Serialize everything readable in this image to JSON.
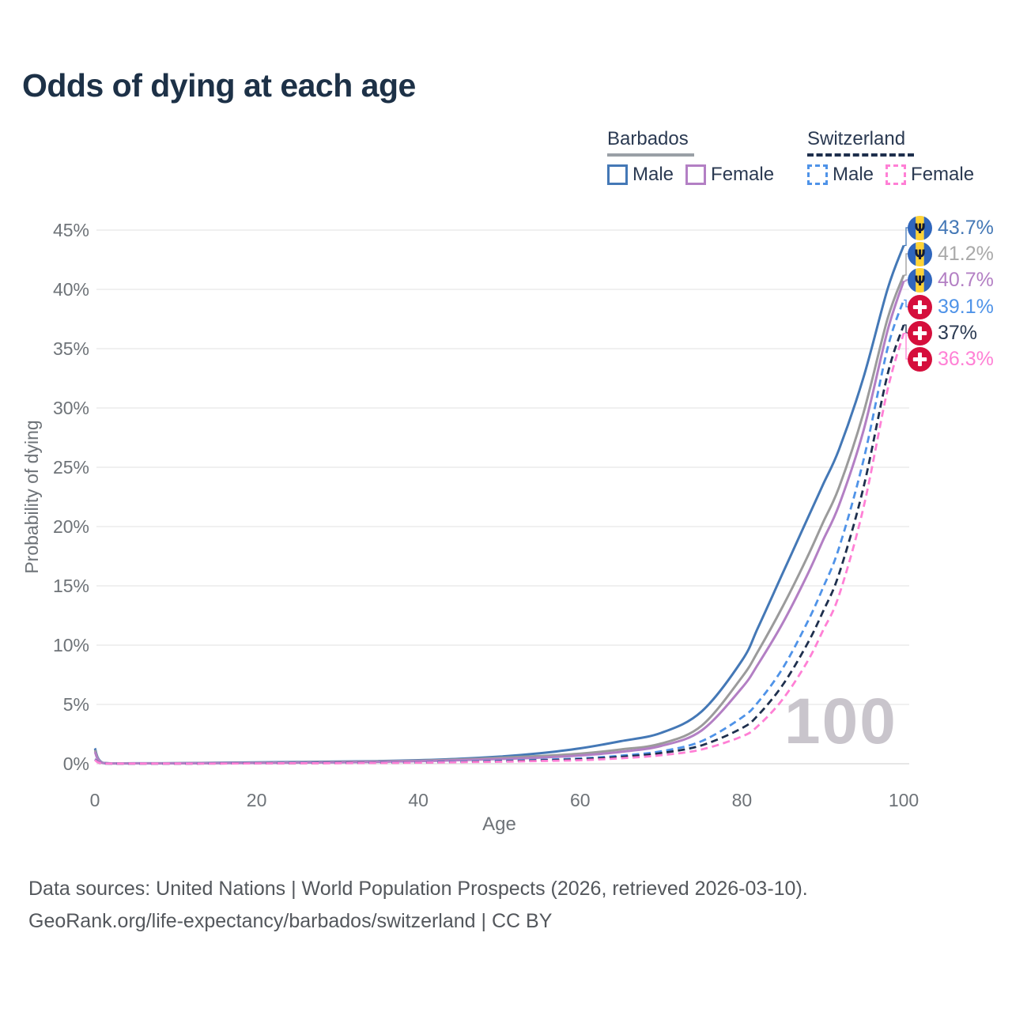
{
  "title": "Odds of dying at each age",
  "watermark": "100",
  "legend": {
    "groups": [
      {
        "label": "Barbados",
        "line_style": "solid",
        "line_color": "#9aa0a6",
        "items": [
          {
            "label": "Male",
            "color": "#4478b6"
          },
          {
            "label": "Female",
            "color": "#b37fc4"
          }
        ]
      },
      {
        "label": "Switzerland",
        "line_style": "dashed",
        "line_color": "#1e2f4d",
        "items": [
          {
            "label": "Male",
            "color": "#4f93e8"
          },
          {
            "label": "Female",
            "color": "#ff80d5"
          }
        ]
      }
    ]
  },
  "chart_data": {
    "type": "line",
    "title": "Odds of dying at each age",
    "xlabel": "Age",
    "ylabel": "Probability of dying",
    "xlim": [
      0,
      100
    ],
    "ylim": [
      0,
      45
    ],
    "x_ticks": [
      0,
      20,
      40,
      60,
      80,
      100
    ],
    "y_ticks_percent": [
      0,
      5,
      10,
      15,
      20,
      25,
      30,
      35,
      40,
      45
    ],
    "grid": "horizontal",
    "legend_position": "top-right",
    "ages": [
      0,
      1,
      5,
      10,
      15,
      20,
      25,
      30,
      35,
      40,
      45,
      50,
      55,
      60,
      65,
      70,
      75,
      80,
      82,
      85,
      88,
      90,
      92,
      95,
      98,
      100
    ],
    "series": [
      {
        "name": "Barbados Male",
        "country": "Barbados",
        "sex": "Male",
        "style": "solid",
        "color": "#4478b6",
        "flag": "barbados",
        "end_value_label": "43.7%",
        "label_color": "#4478b6",
        "values_percent": [
          1.3,
          0.08,
          0.04,
          0.05,
          0.08,
          0.12,
          0.15,
          0.18,
          0.22,
          0.3,
          0.42,
          0.6,
          0.88,
          1.3,
          1.9,
          2.6,
          4.4,
          8.7,
          11.5,
          16.0,
          20.5,
          23.5,
          26.5,
          32.5,
          40.0,
          43.7
        ]
      },
      {
        "name": "Barbados Both sexes",
        "country": "Barbados",
        "sex": "Both",
        "style": "solid",
        "color": "#9b9b9b",
        "flag": "barbados",
        "end_value_label": "41.2%",
        "label_color": "#a9a9a9",
        "values_percent": [
          1.15,
          0.07,
          0.03,
          0.04,
          0.06,
          0.09,
          0.12,
          0.15,
          0.19,
          0.26,
          0.36,
          0.5,
          0.65,
          0.85,
          1.2,
          1.7,
          3.2,
          7.3,
          9.5,
          13.2,
          17.3,
          20.3,
          23.3,
          29.5,
          37.5,
          41.2
        ]
      },
      {
        "name": "Barbados Female",
        "country": "Barbados",
        "sex": "Female",
        "style": "solid",
        "color": "#b37fc4",
        "flag": "barbados",
        "end_value_label": "40.7%",
        "label_color": "#b37fc4",
        "values_percent": [
          1.0,
          0.06,
          0.03,
          0.03,
          0.05,
          0.07,
          0.09,
          0.12,
          0.16,
          0.22,
          0.3,
          0.4,
          0.52,
          0.7,
          1.0,
          1.5,
          2.8,
          6.4,
          8.4,
          11.8,
          15.8,
          18.8,
          21.8,
          28.0,
          36.5,
          40.7
        ]
      },
      {
        "name": "Switzerland Male",
        "country": "Switzerland",
        "sex": "Male",
        "style": "dashed",
        "color": "#4f93e8",
        "flag": "switzerland",
        "end_value_label": "39.1%",
        "label_color": "#4f93e8",
        "values_percent": [
          0.38,
          0.02,
          0.01,
          0.01,
          0.03,
          0.05,
          0.06,
          0.07,
          0.09,
          0.12,
          0.18,
          0.25,
          0.33,
          0.45,
          0.68,
          1.05,
          1.9,
          3.9,
          5.2,
          8.0,
          11.8,
          14.8,
          18.2,
          25.5,
          35.0,
          39.1
        ]
      },
      {
        "name": "Switzerland Both sexes",
        "country": "Switzerland",
        "sex": "Both",
        "style": "dashed",
        "color": "#1e2f4d",
        "flag": "switzerland",
        "end_value_label": "37%",
        "label_color": "#2b3a52",
        "values_percent": [
          0.35,
          0.02,
          0.01,
          0.01,
          0.02,
          0.04,
          0.05,
          0.06,
          0.08,
          0.1,
          0.15,
          0.2,
          0.28,
          0.38,
          0.58,
          0.9,
          1.55,
          3.0,
          4.1,
          6.6,
          10.0,
          12.8,
          16.0,
          23.2,
          32.8,
          37.0
        ]
      },
      {
        "name": "Switzerland Female",
        "country": "Switzerland",
        "sex": "Female",
        "style": "dashed",
        "color": "#ff80d5",
        "flag": "switzerland",
        "end_value_label": "36.3%",
        "label_color": "#ff80d5",
        "values_percent": [
          0.32,
          0.02,
          0.01,
          0.01,
          0.02,
          0.03,
          0.04,
          0.05,
          0.07,
          0.09,
          0.13,
          0.17,
          0.23,
          0.3,
          0.46,
          0.72,
          1.2,
          2.3,
          3.2,
          5.4,
          8.5,
          11.2,
          14.2,
          21.5,
          31.5,
          36.3
        ]
      }
    ]
  },
  "footer": {
    "line1": "Data sources: United Nations | World Population Prospects (2026, retrieved 2026-03-10).",
    "line2": "GeoRank.org/life-expectancy/barbados/switzerland | CC BY"
  }
}
